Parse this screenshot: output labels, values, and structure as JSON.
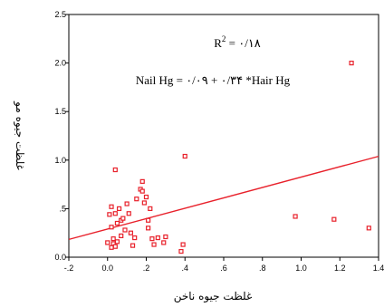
{
  "chart_data": {
    "type": "scatter",
    "title": "",
    "xlabel": "غلظت جیوه ناخن",
    "ylabel": "غلظت جیوه مو",
    "xlim": [
      -0.2,
      1.4
    ],
    "ylim": [
      0,
      2.5
    ],
    "x_tick_labels": [
      "-.2",
      "0.0",
      ".2",
      ".4",
      ".6",
      ".8",
      "1.0",
      "1.2",
      "1.4"
    ],
    "x_ticks": [
      -0.2,
      0.0,
      0.2,
      0.4,
      0.6,
      0.8,
      1.0,
      1.2,
      1.4
    ],
    "y_tick_labels": [
      "0.0",
      ".5",
      "1.0",
      "1.5",
      "2.0",
      "2.5"
    ],
    "y_ticks": [
      0.0,
      0.5,
      1.0,
      1.5,
      2.0,
      2.5
    ],
    "grid": false,
    "marker_color": "#e8212b",
    "line_color": "#e8212b",
    "annotations": {
      "r2_label": "R",
      "r2_sup": "2",
      "r2_value": " = ۰/۱۸",
      "equation": "Nail Hg = ۰/۰۹ + ۰/۳۴ *Hair Hg"
    },
    "fit_line": {
      "intercept": 0.29,
      "slope": 0.535
    },
    "points": [
      [
        0.0,
        0.15
      ],
      [
        0.01,
        0.44
      ],
      [
        0.02,
        0.52
      ],
      [
        0.02,
        0.1
      ],
      [
        0.02,
        0.31
      ],
      [
        0.03,
        0.19
      ],
      [
        0.03,
        0.14
      ],
      [
        0.04,
        0.9
      ],
      [
        0.04,
        0.11
      ],
      [
        0.04,
        0.45
      ],
      [
        0.05,
        0.35
      ],
      [
        0.05,
        0.16
      ],
      [
        0.06,
        0.5
      ],
      [
        0.07,
        0.38
      ],
      [
        0.07,
        0.22
      ],
      [
        0.08,
        0.4
      ],
      [
        0.09,
        0.28
      ],
      [
        0.1,
        0.55
      ],
      [
        0.11,
        0.45
      ],
      [
        0.12,
        0.25
      ],
      [
        0.13,
        0.12
      ],
      [
        0.14,
        0.2
      ],
      [
        0.15,
        0.6
      ],
      [
        0.17,
        0.7
      ],
      [
        0.18,
        0.78
      ],
      [
        0.18,
        0.68
      ],
      [
        0.19,
        0.56
      ],
      [
        0.2,
        0.62
      ],
      [
        0.21,
        0.38
      ],
      [
        0.21,
        0.3
      ],
      [
        0.22,
        0.5
      ],
      [
        0.23,
        0.19
      ],
      [
        0.24,
        0.13
      ],
      [
        0.26,
        0.2
      ],
      [
        0.29,
        0.15
      ],
      [
        0.3,
        0.21
      ],
      [
        0.38,
        0.06
      ],
      [
        0.39,
        0.13
      ],
      [
        0.4,
        1.04
      ],
      [
        0.97,
        0.42
      ],
      [
        1.17,
        0.39
      ],
      [
        1.26,
        2.0
      ],
      [
        1.35,
        0.3
      ]
    ]
  }
}
